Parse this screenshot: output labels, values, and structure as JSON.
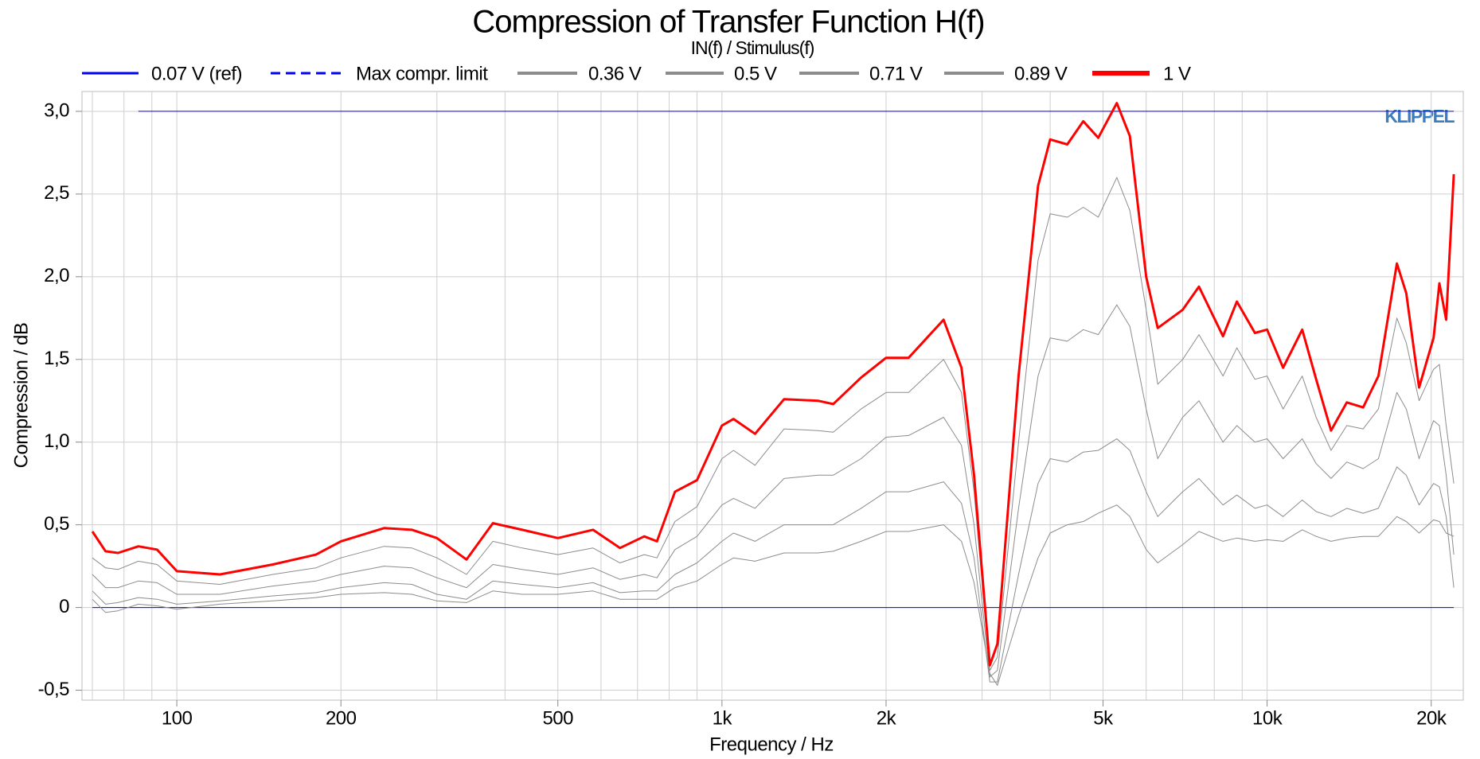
{
  "chart_data": {
    "type": "line",
    "title": "Compression of Transfer Function H(f)",
    "subtitle": "IN(f) / Stimulus(f)",
    "xlabel": "Frequency / Hz",
    "ylabel": "Compression / dB",
    "annotation": "KLIPPEL",
    "xscale": "log",
    "grid": true,
    "xlim": [
      67,
      22900
    ],
    "ylim": [
      -0.56,
      3.12
    ],
    "xticks": [
      100,
      200,
      500,
      {
        "value": 1000,
        "label": "1k"
      },
      {
        "value": 2000,
        "label": "2k"
      },
      {
        "value": 5000,
        "label": "5k"
      },
      {
        "value": 10000,
        "label": "10k"
      },
      {
        "value": 20000,
        "label": "20k"
      }
    ],
    "x_minor_ticks": [
      70,
      80,
      90,
      300,
      400,
      600,
      700,
      800,
      900,
      3000,
      4000,
      6000,
      7000,
      8000,
      9000
    ],
    "yticks": [
      {
        "value": -0.5,
        "label": "-0,5"
      },
      0,
      {
        "value": 0.5,
        "label": "0,5"
      },
      {
        "value": 1.0,
        "label": "1,0"
      },
      {
        "value": 1.5,
        "label": "1,5"
      },
      {
        "value": 2.0,
        "label": "2,0"
      },
      {
        "value": 2.5,
        "label": "2,5"
      },
      {
        "value": 3.0,
        "label": "3,0"
      }
    ],
    "x": [
      70,
      74,
      78,
      85,
      92,
      100,
      120,
      150,
      180,
      200,
      240,
      270,
      300,
      340,
      380,
      430,
      500,
      580,
      650,
      720,
      760,
      820,
      900,
      1000,
      1050,
      1150,
      1300,
      1500,
      1600,
      1800,
      2000,
      2200,
      2550,
      2750,
      2900,
      3100,
      3200,
      3500,
      3800,
      4000,
      4300,
      4600,
      4900,
      5300,
      5600,
      6000,
      6300,
      7000,
      7500,
      8300,
      8800,
      9500,
      10000,
      10700,
      11600,
      12300,
      13100,
      14000,
      15000,
      16000,
      17300,
      18000,
      19000,
      20200,
      20700,
      21300,
      22000
    ],
    "series": [
      {
        "name": "0.07 V (ref)",
        "color": "#0000ff",
        "width": 1,
        "legend_width": 3,
        "style": "solid",
        "values": [
          0,
          0,
          0,
          0,
          0,
          0,
          0,
          0,
          0,
          0,
          0,
          0,
          0,
          0,
          0,
          0,
          0,
          0,
          0,
          0,
          0,
          0,
          0,
          0,
          0,
          0,
          0,
          0,
          0,
          0,
          0,
          0,
          0,
          0,
          0,
          0,
          0,
          0,
          0,
          0,
          0,
          0,
          0,
          0,
          0,
          0,
          0,
          0,
          0,
          0,
          0,
          0,
          0,
          0,
          0,
          0,
          0,
          0,
          0,
          0,
          0,
          0,
          0,
          0,
          0,
          0,
          0
        ]
      },
      {
        "name": "Max compr. limit",
        "color": "#0000ff",
        "width": 1,
        "legend_width": 3,
        "style": "dashed",
        "values": [
          null,
          null,
          null,
          3,
          3,
          3,
          3,
          3,
          3,
          3,
          3,
          3,
          3,
          3,
          3,
          3,
          3,
          3,
          3,
          3,
          3,
          3,
          3,
          3,
          3,
          3,
          3,
          3,
          3,
          3,
          3,
          3,
          3,
          3,
          3,
          3,
          3,
          3,
          3,
          3,
          3,
          3,
          3,
          3,
          3,
          3,
          3,
          3,
          3,
          3,
          3,
          3,
          3,
          3,
          3,
          3,
          3,
          3,
          3,
          3,
          3,
          3,
          3,
          3,
          3,
          3,
          3
        ]
      },
      {
        "name": "0.36 V",
        "color": "#8c8c8c",
        "width": 1,
        "legend_width": 4,
        "style": "solid",
        "values": [
          0.05,
          -0.03,
          -0.02,
          0.02,
          0.01,
          -0.01,
          0.02,
          0.04,
          0.06,
          0.08,
          0.09,
          0.08,
          0.04,
          0.03,
          0.1,
          0.08,
          0.08,
          0.1,
          0.05,
          0.05,
          0.05,
          0.12,
          0.16,
          0.26,
          0.3,
          0.28,
          0.33,
          0.33,
          0.34,
          0.4,
          0.46,
          0.46,
          0.5,
          0.4,
          0.15,
          -0.4,
          -0.47,
          -0.05,
          0.3,
          0.45,
          0.5,
          0.52,
          0.57,
          0.62,
          0.55,
          0.35,
          0.27,
          0.38,
          0.46,
          0.4,
          0.42,
          0.4,
          0.41,
          0.4,
          0.47,
          0.43,
          0.4,
          0.42,
          0.43,
          0.43,
          0.55,
          0.52,
          0.45,
          0.53,
          0.52,
          0.45,
          0.43
        ]
      },
      {
        "name": "0.5 V",
        "color": "#8c8c8c",
        "width": 1,
        "legend_width": 4,
        "style": "solid",
        "values": [
          0.1,
          0.02,
          0.03,
          0.06,
          0.05,
          0.02,
          0.04,
          0.07,
          0.09,
          0.12,
          0.15,
          0.14,
          0.08,
          0.05,
          0.16,
          0.14,
          0.12,
          0.15,
          0.09,
          0.1,
          0.1,
          0.2,
          0.27,
          0.4,
          0.45,
          0.4,
          0.5,
          0.5,
          0.5,
          0.6,
          0.7,
          0.7,
          0.76,
          0.63,
          0.3,
          -0.45,
          -0.45,
          0.2,
          0.75,
          0.9,
          0.88,
          0.94,
          0.95,
          1.02,
          0.95,
          0.7,
          0.55,
          0.7,
          0.78,
          0.62,
          0.68,
          0.6,
          0.62,
          0.55,
          0.65,
          0.58,
          0.55,
          0.6,
          0.57,
          0.6,
          0.85,
          0.8,
          0.62,
          0.75,
          0.73,
          0.55,
          0.12
        ]
      },
      {
        "name": "0.71 V",
        "color": "#8c8c8c",
        "width": 1,
        "legend_width": 4,
        "style": "solid",
        "values": [
          0.2,
          0.12,
          0.12,
          0.16,
          0.15,
          0.08,
          0.08,
          0.13,
          0.16,
          0.2,
          0.25,
          0.24,
          0.18,
          0.12,
          0.26,
          0.23,
          0.2,
          0.24,
          0.17,
          0.2,
          0.18,
          0.35,
          0.43,
          0.62,
          0.66,
          0.6,
          0.78,
          0.8,
          0.8,
          0.9,
          1.03,
          1.04,
          1.15,
          0.98,
          0.5,
          -0.42,
          -0.38,
          0.6,
          1.4,
          1.63,
          1.61,
          1.68,
          1.65,
          1.83,
          1.7,
          1.2,
          0.9,
          1.15,
          1.25,
          1.0,
          1.1,
          1.0,
          1.02,
          0.9,
          1.02,
          0.87,
          0.78,
          0.88,
          0.84,
          0.9,
          1.3,
          1.2,
          0.9,
          1.13,
          1.1,
          0.8,
          0.32
        ]
      },
      {
        "name": "0.89 V",
        "color": "#8c8c8c",
        "width": 1,
        "legend_width": 4,
        "style": "solid",
        "values": [
          0.3,
          0.24,
          0.23,
          0.28,
          0.26,
          0.16,
          0.14,
          0.2,
          0.24,
          0.3,
          0.37,
          0.36,
          0.3,
          0.2,
          0.4,
          0.36,
          0.32,
          0.36,
          0.27,
          0.32,
          0.3,
          0.52,
          0.61,
          0.9,
          0.95,
          0.86,
          1.08,
          1.07,
          1.06,
          1.2,
          1.3,
          1.3,
          1.5,
          1.3,
          0.7,
          -0.38,
          -0.3,
          1.0,
          2.1,
          2.38,
          2.36,
          2.42,
          2.36,
          2.6,
          2.4,
          1.8,
          1.35,
          1.5,
          1.65,
          1.4,
          1.57,
          1.38,
          1.4,
          1.2,
          1.4,
          1.15,
          0.95,
          1.1,
          1.08,
          1.2,
          1.75,
          1.6,
          1.25,
          1.44,
          1.47,
          1.1,
          0.75
        ]
      },
      {
        "name": "1 V",
        "color": "#ff0000",
        "width": 3,
        "legend_width": 6,
        "style": "solid",
        "values": [
          0.46,
          0.34,
          0.33,
          0.37,
          0.35,
          0.22,
          0.2,
          0.26,
          0.32,
          0.4,
          0.48,
          0.47,
          0.42,
          0.29,
          0.51,
          0.47,
          0.42,
          0.47,
          0.36,
          0.43,
          0.4,
          0.7,
          0.77,
          1.1,
          1.14,
          1.05,
          1.26,
          1.25,
          1.23,
          1.39,
          1.51,
          1.51,
          1.74,
          1.45,
          0.8,
          -0.35,
          -0.22,
          1.4,
          2.55,
          2.83,
          2.8,
          2.94,
          2.84,
          3.05,
          2.85,
          2.0,
          1.69,
          1.8,
          1.94,
          1.64,
          1.85,
          1.66,
          1.68,
          1.45,
          1.68,
          1.38,
          1.07,
          1.24,
          1.21,
          1.4,
          2.08,
          1.9,
          1.33,
          1.63,
          1.96,
          1.74,
          2.62
        ]
      }
    ]
  }
}
